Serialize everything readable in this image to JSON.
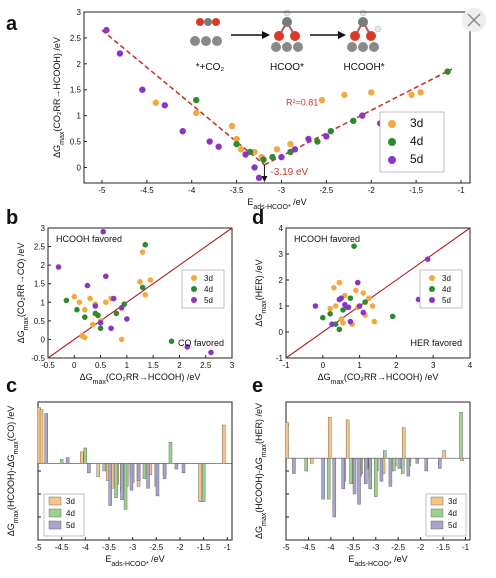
{
  "colors": {
    "d3": "#f2a941",
    "d4": "#2f8a2f",
    "d5": "#8a35c8",
    "fit": "#c0392b",
    "diag": "#b0202a",
    "bar3": "#f7c48a",
    "bar4": "#9bd28f",
    "bar5": "#a9a4cc"
  },
  "chart_data": [
    {
      "id": "a",
      "type": "scatter",
      "panel_label": "a",
      "xlabel": "E",
      "xlabel_sub": "ads-HCOO*",
      "xlabel_unit": " /eV",
      "ylabel": "ΔG",
      "ylabel_sub": "max",
      "ylabel_rest": "(CO₂RR→HCOOH) /eV",
      "xlim": [
        -5.2,
        -0.9
      ],
      "ylim": [
        -0.3,
        3.0
      ],
      "xticks": [
        -5.0,
        -4.5,
        -4.0,
        -3.5,
        -3.0,
        -2.5,
        -2.0,
        -1.5,
        -1.0
      ],
      "yticks": [
        -0.5,
        0.0,
        0.5,
        1.0,
        1.5,
        2.0,
        2.5,
        3.0
      ],
      "legend": [
        "3d",
        "4d",
        "5d"
      ],
      "legend_position": "right",
      "annotations": {
        "r2": "R²=0.81",
        "vertex": "-3.19 eV"
      },
      "fit_lines": [
        [
          [
            -5.0,
            2.65
          ],
          [
            -3.19,
            0.05
          ]
        ],
        [
          [
            -3.19,
            0.05
          ],
          [
            -1.1,
            1.9
          ]
        ]
      ],
      "mechanism": {
        "labels": [
          "*+CO₂",
          "HCOO*",
          "HCOOH*"
        ]
      },
      "series": [
        {
          "name": "3d",
          "points": [
            [
              -4.4,
              1.25
            ],
            [
              -3.95,
              1.05
            ],
            [
              -3.55,
              0.8
            ],
            [
              -3.5,
              0.55
            ],
            [
              -3.45,
              0.35
            ],
            [
              -3.3,
              0.3
            ],
            [
              -3.22,
              0.2
            ],
            [
              -3.05,
              0.35
            ],
            [
              -2.9,
              0.45
            ],
            [
              -2.55,
              1.3
            ],
            [
              -2.3,
              1.4
            ],
            [
              -2.0,
              1.45
            ],
            [
              -1.55,
              1.4
            ],
            [
              -1.45,
              1.45
            ]
          ]
        },
        {
          "name": "4d",
          "points": [
            [
              -3.95,
              1.3
            ],
            [
              -3.5,
              0.45
            ],
            [
              -3.35,
              0.3
            ],
            [
              -3.2,
              0.15
            ],
            [
              -3.1,
              0.2
            ],
            [
              -2.9,
              0.3
            ],
            [
              -2.6,
              0.5
            ],
            [
              -2.45,
              0.7
            ],
            [
              -2.2,
              0.9
            ],
            [
              -1.15,
              1.85
            ]
          ]
        },
        {
          "name": "5d",
          "points": [
            [
              -4.95,
              2.65
            ],
            [
              -4.8,
              2.2
            ],
            [
              -4.55,
              1.5
            ],
            [
              -4.3,
              1.2
            ],
            [
              -4.1,
              0.7
            ],
            [
              -3.8,
              0.5
            ],
            [
              -3.7,
              0.4
            ],
            [
              -3.4,
              0.25
            ],
            [
              -3.3,
              0.0
            ],
            [
              -3.25,
              -0.2
            ],
            [
              -3.0,
              0.2
            ],
            [
              -2.85,
              0.35
            ],
            [
              -2.7,
              0.55
            ],
            [
              -2.5,
              0.6
            ],
            [
              -2.1,
              1.0
            ],
            [
              -1.9,
              0.85
            ]
          ]
        }
      ]
    },
    {
      "id": "b",
      "type": "scatter",
      "panel_label": "b",
      "xlabel": "ΔG",
      "xlabel_sub": "max",
      "xlabel_rest": "(CO₂RR→HCOOH) /eV",
      "ylabel": "ΔG",
      "ylabel_sub": "max",
      "ylabel_rest": "(CO₂RR→CO) /eV",
      "xlim": [
        -0.5,
        3.0
      ],
      "ylim": [
        -0.5,
        3.0
      ],
      "xticks": [
        -0.5,
        0.0,
        0.5,
        1.0,
        1.5,
        2.0,
        2.5,
        3.0
      ],
      "yticks": [
        -0.5,
        0.0,
        0.5,
        1.0,
        1.5,
        2.0,
        2.5,
        3.0
      ],
      "diagonal": true,
      "legend": [
        "3d",
        "4d",
        "5d"
      ],
      "legend_position": "right",
      "annotations": {
        "upper": "HCOOH favored",
        "lower": "CO favored"
      },
      "series": [
        {
          "name": "3d",
          "points": [
            [
              0.0,
              1.15
            ],
            [
              0.1,
              1.0
            ],
            [
              0.2,
              0.8
            ],
            [
              0.3,
              1.1
            ],
            [
              0.4,
              0.95
            ],
            [
              0.5,
              0.5
            ],
            [
              0.6,
              1.0
            ],
            [
              0.7,
              1.1
            ],
            [
              1.25,
              1.55
            ],
            [
              1.35,
              1.2
            ],
            [
              1.45,
              1.6
            ],
            [
              1.3,
              2.35
            ],
            [
              0.35,
              0.4
            ],
            [
              0.15,
              0.1
            ],
            [
              0.9,
              0.0
            ],
            [
              0.2,
              0.05
            ]
          ]
        },
        {
          "name": "4d",
          "points": [
            [
              -0.15,
              1.05
            ],
            [
              0.05,
              0.8
            ],
            [
              0.2,
              0.6
            ],
            [
              0.4,
              0.7
            ],
            [
              0.5,
              0.3
            ],
            [
              0.8,
              0.7
            ],
            [
              1.35,
              2.55
            ],
            [
              1.3,
              1.4
            ],
            [
              1.85,
              -0.05
            ],
            [
              0.45,
              0.65
            ],
            [
              0.95,
              0.95
            ]
          ]
        },
        {
          "name": "5d",
          "points": [
            [
              -0.3,
              1.95
            ],
            [
              0.55,
              2.9
            ],
            [
              0.6,
              1.7
            ],
            [
              0.25,
              1.45
            ],
            [
              0.5,
              0.45
            ],
            [
              0.9,
              0.85
            ],
            [
              1.0,
              0.55
            ],
            [
              0.7,
              0.3
            ],
            [
              2.15,
              -0.2
            ],
            [
              2.6,
              -0.35
            ],
            [
              0.75,
              1.1
            ],
            [
              0.4,
              0.9
            ]
          ]
        }
      ]
    },
    {
      "id": "d",
      "type": "scatter",
      "panel_label": "d",
      "xlabel": "ΔG",
      "xlabel_sub": "max",
      "xlabel_rest": "(CO₂RR→HCOOH) /eV",
      "ylabel": "ΔG",
      "ylabel_sub": "max",
      "ylabel_rest": "(HER) /eV",
      "xlim": [
        -1.0,
        4.0
      ],
      "ylim": [
        -1.0,
        4.0
      ],
      "xticks": [
        -1,
        0,
        1,
        2,
        3,
        4
      ],
      "yticks": [
        -1,
        0,
        1,
        2,
        3,
        4
      ],
      "diagonal": true,
      "legend": [
        "3d",
        "4d",
        "5d"
      ],
      "legend_position": "right",
      "annotations": {
        "upper": "HCOOH favored",
        "lower": "HER favored"
      },
      "series": [
        {
          "name": "3d",
          "points": [
            [
              0.3,
              1.7
            ],
            [
              0.45,
              1.9
            ],
            [
              0.6,
              1.4
            ],
            [
              0.9,
              1.6
            ],
            [
              1.1,
              1.5
            ],
            [
              1.25,
              1.3
            ],
            [
              1.35,
              1.0
            ],
            [
              0.5,
              0.5
            ],
            [
              0.8,
              0.3
            ],
            [
              0.35,
              1.0
            ],
            [
              0.55,
              0.35
            ],
            [
              1.15,
              0.65
            ],
            [
              0.2,
              0.9
            ],
            [
              0.95,
              0.95
            ],
            [
              1.4,
              0.4
            ]
          ]
        },
        {
          "name": "4d",
          "points": [
            [
              0.0,
              0.55
            ],
            [
              0.2,
              0.7
            ],
            [
              0.35,
              0.3
            ],
            [
              0.55,
              0.85
            ],
            [
              0.75,
              1.3
            ],
            [
              0.85,
              3.3
            ],
            [
              1.15,
              1.15
            ],
            [
              0.45,
              0.1
            ],
            [
              1.9,
              0.6
            ],
            [
              0.65,
              0.95
            ]
          ]
        },
        {
          "name": "5d",
          "points": [
            [
              -0.2,
              1.0
            ],
            [
              0.25,
              0.3
            ],
            [
              0.45,
              1.25
            ],
            [
              0.6,
              1.05
            ],
            [
              0.7,
              0.95
            ],
            [
              0.95,
              1.9
            ],
            [
              1.1,
              0.75
            ],
            [
              2.6,
              1.25
            ],
            [
              2.85,
              2.8
            ],
            [
              0.5,
              1.3
            ],
            [
              0.75,
              0.4
            ],
            [
              1.0,
              1.0
            ]
          ]
        }
      ]
    },
    {
      "id": "c",
      "type": "bar",
      "panel_label": "c",
      "xlabel": "E",
      "xlabel_sub": "ads-HCOO*",
      "xlabel_unit": " /eV",
      "ylabel": "ΔG",
      "ylabel_sub": "max",
      "ylabel_rest": "(HCOOH)-ΔG",
      "ylabel_sub2": "max",
      "ylabel_rest2": "(CO) /eV",
      "xlim": [
        -5.0,
        -0.9
      ],
      "ylim": [
        -4.0,
        3.2
      ],
      "xticks": [
        -5.0,
        -4.5,
        -4.0,
        -3.5,
        -3.0,
        -2.5,
        -2.0,
        -1.5,
        -1.0
      ],
      "legend": [
        "3d",
        "4d",
        "5d"
      ],
      "legend_position": "bottom-left",
      "series": [
        {
          "name": "3d",
          "bars": [
            [
              -4.95,
              2.9
            ],
            [
              -4.9,
              2.8
            ],
            [
              -4.05,
              0.6
            ],
            [
              -3.7,
              -0.7
            ],
            [
              -3.5,
              -0.9
            ],
            [
              -3.4,
              -1.3
            ],
            [
              -3.3,
              -1.1
            ],
            [
              -3.2,
              -1.5
            ],
            [
              -3.1,
              -1.2
            ],
            [
              -3.0,
              -0.7
            ],
            [
              -2.85,
              -1.2
            ],
            [
              -2.6,
              -0.6
            ],
            [
              -2.3,
              -0.6
            ],
            [
              -1.55,
              -2.0
            ],
            [
              -1.05,
              2.0
            ]
          ]
        },
        {
          "name": "4d",
          "bars": [
            [
              -4.5,
              0.2
            ],
            [
              -4.0,
              0.8
            ],
            [
              -3.6,
              -0.4
            ],
            [
              -3.35,
              -1.8
            ],
            [
              -3.15,
              -2.4
            ],
            [
              -3.0,
              -1.0
            ],
            [
              -2.75,
              -0.8
            ],
            [
              -2.5,
              -1.2
            ],
            [
              -2.2,
              1.1
            ],
            [
              -1.5,
              -2.0
            ]
          ]
        },
        {
          "name": "5d",
          "bars": [
            [
              -4.85,
              2.6
            ],
            [
              -4.4,
              0.3
            ],
            [
              -3.95,
              -0.5
            ],
            [
              -3.5,
              -2.2
            ],
            [
              -3.25,
              -1.9
            ],
            [
              -3.05,
              -1.4
            ],
            [
              -2.9,
              -0.9
            ],
            [
              -2.7,
              -1.3
            ],
            [
              -2.5,
              -1.7
            ],
            [
              -2.35,
              -0.8
            ],
            [
              -2.1,
              -0.3
            ],
            [
              -1.95,
              -0.5
            ]
          ]
        }
      ]
    },
    {
      "id": "e",
      "type": "bar",
      "panel_label": "e",
      "xlabel": "E",
      "xlabel_sub": "ads-HCOO*",
      "xlabel_unit": " /eV",
      "ylabel": "ΔG",
      "ylabel_sub": "max",
      "ylabel_rest": "(HCOOH)-ΔG",
      "ylabel_sub2": "max",
      "ylabel_rest2": "(HER) /eV",
      "xlim": [
        -5.0,
        -0.9
      ],
      "ylim": [
        -3.2,
        2.2
      ],
      "xticks": [
        -5.0,
        -4.5,
        -4.0,
        -3.5,
        -3.0,
        -2.5,
        -2.0,
        -1.5,
        -1.0
      ],
      "legend": [
        "3d",
        "4d",
        "5d"
      ],
      "legend_position": "bottom-right",
      "series": [
        {
          "name": "3d",
          "bars": [
            [
              -4.95,
              1.4
            ],
            [
              -4.4,
              -0.2
            ],
            [
              -4.0,
              1.6
            ],
            [
              -3.6,
              1.5
            ],
            [
              -3.45,
              -1.0
            ],
            [
              -3.3,
              -0.6
            ],
            [
              -3.1,
              -0.8
            ],
            [
              -2.95,
              -0.5
            ],
            [
              -2.8,
              -0.6
            ],
            [
              -2.55,
              -0.3
            ],
            [
              -2.35,
              1.2
            ],
            [
              -1.45,
              0.3
            ],
            [
              -1.05,
              -0.1
            ]
          ]
        },
        {
          "name": "4d",
          "bars": [
            [
              -4.55,
              -0.5
            ],
            [
              -4.05,
              -1.6
            ],
            [
              -3.7,
              -0.9
            ],
            [
              -3.55,
              -1.0
            ],
            [
              -3.35,
              -0.7
            ],
            [
              -3.2,
              -0.4
            ],
            [
              -3.0,
              -1.5
            ],
            [
              -2.8,
              0.3
            ],
            [
              -2.6,
              -0.5
            ],
            [
              -2.4,
              -0.6
            ],
            [
              -2.25,
              -0.3
            ],
            [
              -1.1,
              1.8
            ]
          ]
        },
        {
          "name": "5d",
          "bars": [
            [
              -4.85,
              -0.6
            ],
            [
              -4.2,
              -1.6
            ],
            [
              -3.95,
              -2.3
            ],
            [
              -3.75,
              -1.2
            ],
            [
              -3.5,
              -1.4
            ],
            [
              -3.4,
              -1.8
            ],
            [
              -3.25,
              -1.0
            ],
            [
              -3.15,
              -1.2
            ],
            [
              -2.9,
              -0.9
            ],
            [
              -2.7,
              -1.1
            ],
            [
              -2.5,
              -0.4
            ],
            [
              -2.3,
              -0.7
            ],
            [
              -2.1,
              -0.2
            ],
            [
              -1.9,
              -0.5
            ],
            [
              -1.6,
              -0.4
            ]
          ]
        }
      ]
    }
  ]
}
